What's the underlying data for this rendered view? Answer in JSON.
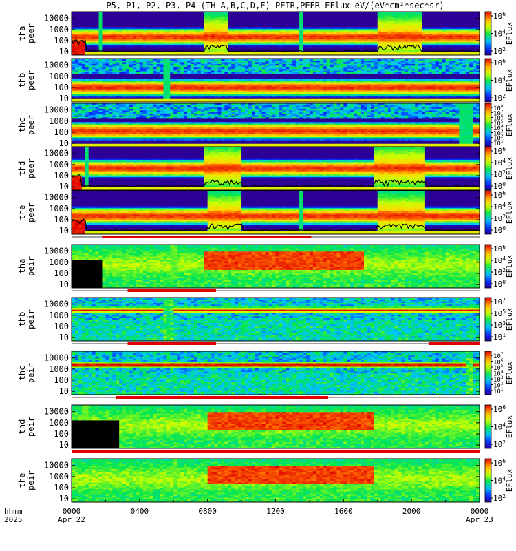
{
  "chart_data": {
    "type": "heatmap",
    "title": "P5, P1, P2, P3, P4 (TH-A,B,C,D,E) PEIR,PEER EFlux eV/(eV*cm^2*sec*sr)",
    "x_ticks": [
      "0000",
      "0400",
      "0800",
      "1200",
      "1600",
      "2000",
      "0000"
    ],
    "x_ticks_hours": [
      0,
      4,
      8,
      12,
      16,
      20,
      24
    ],
    "x_label_rows": [
      "hhmm",
      "2025"
    ],
    "x_dates": {
      "start": "Apr 22",
      "end": "Apr 23"
    },
    "colorbar_label": "EFlux",
    "panels": [
      {
        "id": "tha-peer",
        "ylabel": [
          "tha",
          "peer"
        ],
        "yticks": [
          "10",
          "100",
          "1000",
          "10000"
        ],
        "cbar_ticks": [
          "10^2",
          "10^4",
          "10^6"
        ],
        "style": "electron",
        "core_center": 250,
        "bursts": [
          [
            7.9,
            9.2
          ],
          [
            18.1,
            20.5
          ]
        ],
        "strips": [
          [
            1.6,
            1.7
          ],
          [
            13.5,
            13.6
          ]
        ],
        "cutoff": true,
        "lowfill": [
          [
            0,
            0.8
          ]
        ]
      },
      {
        "id": "thb-peer",
        "ylabel": [
          "thb",
          "peer"
        ],
        "yticks": [
          "10",
          "100",
          "1000",
          "10000"
        ],
        "cbar_ticks": [
          "10^2",
          "10^4",
          "10^6"
        ],
        "style": "electron-quiet",
        "core_center": 110,
        "bursts": [],
        "strips": [
          [
            5.5,
            5.8
          ]
        ],
        "cutoff": false,
        "lowfill": []
      },
      {
        "id": "thc-peer",
        "ylabel": [
          "thc",
          "peer"
        ],
        "yticks": [
          "10",
          "100",
          "1000",
          "10000"
        ],
        "cbar_ticks": [
          "10^1",
          "10^2",
          "10^3",
          "10^4",
          "10^5",
          "10^6",
          "10^7",
          "10^8"
        ],
        "style": "electron-quiet",
        "core_center": 150,
        "bursts": [],
        "strips": [
          [
            22.9,
            23.6
          ]
        ],
        "cutoff": false,
        "lowfill": []
      },
      {
        "id": "thd-peer",
        "ylabel": [
          "thd",
          "peer"
        ],
        "yticks": [
          "10",
          "100",
          "1000",
          "10000"
        ],
        "cbar_ticks": [
          "10^0",
          "10^2",
          "10^4",
          "10^6"
        ],
        "style": "electron",
        "core_center": 500,
        "bursts": [
          [
            7.9,
            10.0
          ],
          [
            17.8,
            20.8
          ]
        ],
        "strips": [
          [
            0.8,
            1.0
          ]
        ],
        "cutoff": true,
        "lowfill": [
          [
            0,
            0.6
          ]
        ]
      },
      {
        "id": "the-peer",
        "ylabel": [
          "the",
          "peer"
        ],
        "yticks": [
          "10",
          "100",
          "1000",
          "10000"
        ],
        "cbar_ticks": [
          "10^0",
          "10^2",
          "10^4",
          "10^6"
        ],
        "style": "electron",
        "core_center": 250,
        "bursts": [
          [
            8.0,
            10.0
          ],
          [
            18.0,
            20.8
          ]
        ],
        "strips": [
          [
            13.4,
            13.6
          ]
        ],
        "cutoff": true,
        "lowfill": [
          [
            0,
            0.8
          ]
        ]
      },
      {
        "id": "tha-peir",
        "ylabel": [
          "tha",
          "peir"
        ],
        "yticks": [
          "10",
          "100",
          "1000",
          "10000"
        ],
        "cbar_ticks": [
          "10^0",
          "10^2",
          "10^4",
          "10^6"
        ],
        "style": "ion",
        "core_center": 1500,
        "bursts": [
          [
            7.8,
            17.2
          ]
        ],
        "strips": [
          [
            5.8,
            6.3
          ]
        ],
        "cutoff": false,
        "lowfill": [
          [
            0,
            1.8
          ]
        ]
      },
      {
        "id": "thb-peir",
        "ylabel": [
          "thb",
          "peir"
        ],
        "yticks": [
          "10",
          "100",
          "1000",
          "10000"
        ],
        "cbar_ticks": [
          "10^1",
          "10^3",
          "10^5",
          "10^7"
        ],
        "style": "ion-band",
        "core_center": 3000,
        "bursts": [],
        "strips": [
          [
            5.5,
            5.9
          ]
        ],
        "cutoff": false,
        "lowfill": []
      },
      {
        "id": "thc-peir",
        "ylabel": [
          "thc",
          "peir"
        ],
        "yticks": [
          "10",
          "100",
          "1000",
          "10000"
        ],
        "cbar_ticks": [
          "10^1",
          "10^2",
          "10^3",
          "10^4",
          "10^5",
          "10^6",
          "10^7"
        ],
        "style": "ion-band",
        "core_center": 2500,
        "bursts": [],
        "strips": [
          [
            23.2,
            23.7
          ]
        ],
        "cutoff": false,
        "lowfill": []
      },
      {
        "id": "thd-peir",
        "ylabel": [
          "thd",
          "peir"
        ],
        "yticks": [
          "10",
          "100",
          "1000",
          "10000"
        ],
        "cbar_ticks": [
          "10^2",
          "10^4",
          "10^6"
        ],
        "style": "ion",
        "core_center": 1500,
        "bursts": [
          [
            8.0,
            17.8
          ]
        ],
        "strips": [
          [
            0.6,
            0.9
          ]
        ],
        "cutoff": false,
        "lowfill": [
          [
            0,
            2.8
          ]
        ]
      },
      {
        "id": "the-peir",
        "ylabel": [
          "the",
          "peir"
        ],
        "yticks": [
          "10",
          "100",
          "1000",
          "10000"
        ],
        "cbar_ticks": [
          "10^2",
          "10^4",
          "10^6"
        ],
        "style": "ion",
        "core_center": 1500,
        "bursts": [
          [
            8.0,
            17.8
          ]
        ],
        "strips": [
          [
            6.0,
            6.2
          ]
        ],
        "cutoff": false,
        "lowfill": []
      }
    ],
    "bars": [
      {
        "after_panel": 4,
        "segments": [
          [
            1.8,
            14.1
          ]
        ]
      },
      {
        "after_panel": 5,
        "segments": [
          [
            3.3,
            8.5
          ]
        ]
      },
      {
        "after_panel": 6,
        "segments": [
          [
            3.3,
            8.5
          ],
          [
            21.0,
            24.0
          ]
        ]
      },
      {
        "after_panel": 7,
        "segments": [
          [
            2.6,
            15.1
          ]
        ]
      },
      {
        "after_panel": 8,
        "segments": [
          [
            0,
            24
          ]
        ]
      }
    ]
  }
}
